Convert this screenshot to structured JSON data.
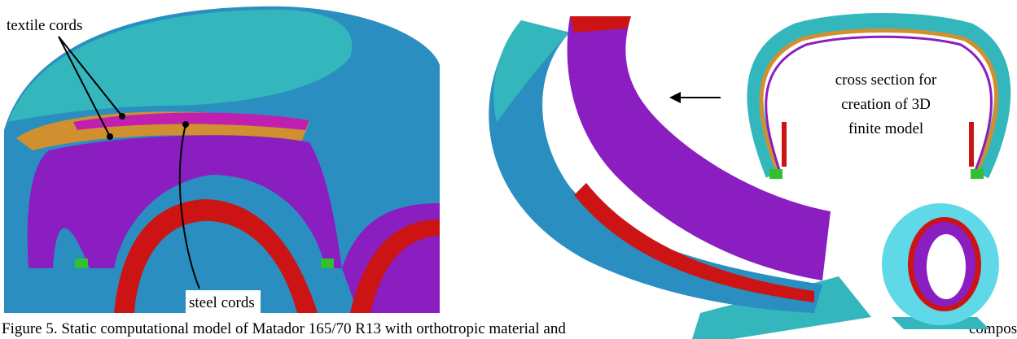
{
  "labels": {
    "textile_cords": "textile cords",
    "steel_cords": "steel cords",
    "cross_section": [
      "cross section for",
      "creation of 3D",
      "finite model"
    ]
  },
  "caption": {
    "main": "Figure 5. Static computational model of Matador 165/70 R13 with orthotropic material and",
    "tail": "composi"
  }
}
